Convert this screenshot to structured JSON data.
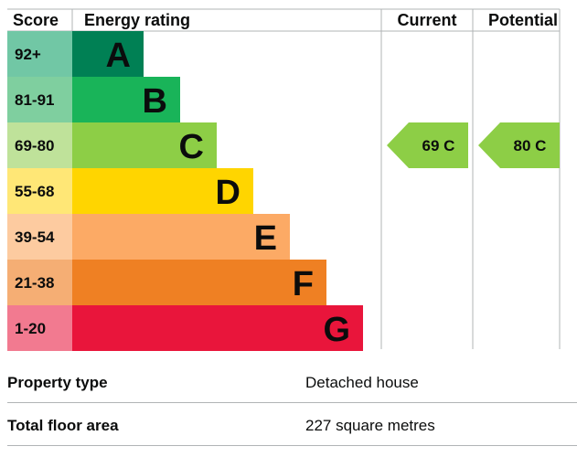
{
  "chart_data": {
    "type": "bar",
    "headers": {
      "score": "Score",
      "rating": "Energy rating",
      "current": "Current",
      "potential": "Potential"
    },
    "bands": [
      {
        "range": "92+",
        "letter": "A",
        "color": "#008054",
        "score_color": "#71c7a5"
      },
      {
        "range": "81-91",
        "letter": "B",
        "color": "#19b459",
        "score_color": "#7fcf9f"
      },
      {
        "range": "69-80",
        "letter": "C",
        "color": "#8dce46",
        "score_color": "#bfe29a"
      },
      {
        "range": "55-68",
        "letter": "D",
        "color": "#ffd500",
        "score_color": "#ffe776"
      },
      {
        "range": "39-54",
        "letter": "E",
        "color": "#fcaa65",
        "score_color": "#fdcba0"
      },
      {
        "range": "21-38",
        "letter": "F",
        "color": "#ef8023",
        "score_color": "#f5ae74"
      },
      {
        "range": "1-20",
        "letter": "G",
        "color": "#e9153b",
        "score_color": "#f27a90"
      }
    ],
    "current": {
      "value": 69,
      "letter": "C",
      "label": "69  C",
      "color": "#8dce46"
    },
    "potential": {
      "value": 80,
      "letter": "C",
      "label": "80  C",
      "color": "#8dce46"
    }
  },
  "property": {
    "type_label": "Property type",
    "type_value": "Detached house",
    "area_label": "Total floor area",
    "area_value": "227 square metres"
  }
}
